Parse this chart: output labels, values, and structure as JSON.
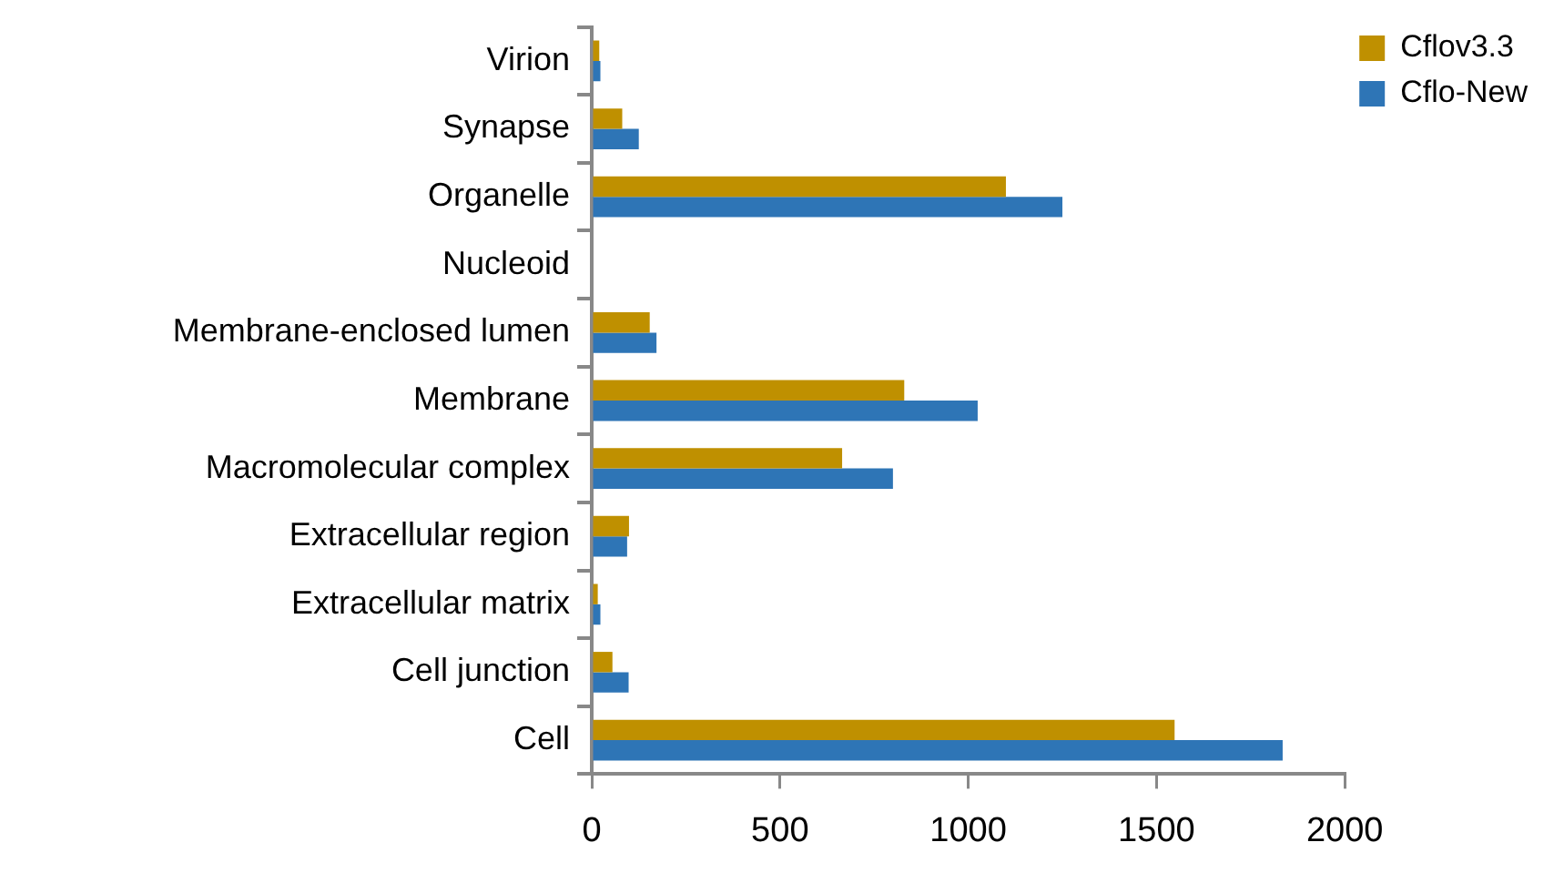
{
  "chart_data": {
    "type": "bar",
    "orientation": "horizontal",
    "categories": [
      "Virion",
      "Synapse",
      "Organelle",
      "Nucleoid",
      "Membrane-enclosed lumen",
      "Membrane",
      "Macromolecular complex",
      "Extracellular region",
      "Extracellular matrix",
      "Cell junction",
      "Cell"
    ],
    "series": [
      {
        "name": "Cflov3.3",
        "color": "#bf9000",
        "values": [
          20,
          81,
          1100,
          0,
          154,
          830,
          665,
          99,
          16,
          55,
          1548
        ]
      },
      {
        "name": "Cflo-New",
        "color": "#2e75b6",
        "values": [
          23,
          125,
          1250,
          0,
          172,
          1025,
          800,
          94,
          23,
          98,
          1835
        ]
      }
    ],
    "xlim": [
      0,
      2000
    ],
    "xticks": [
      0,
      500,
      1000,
      1500,
      2000
    ],
    "grid": false,
    "legend": "top right"
  }
}
